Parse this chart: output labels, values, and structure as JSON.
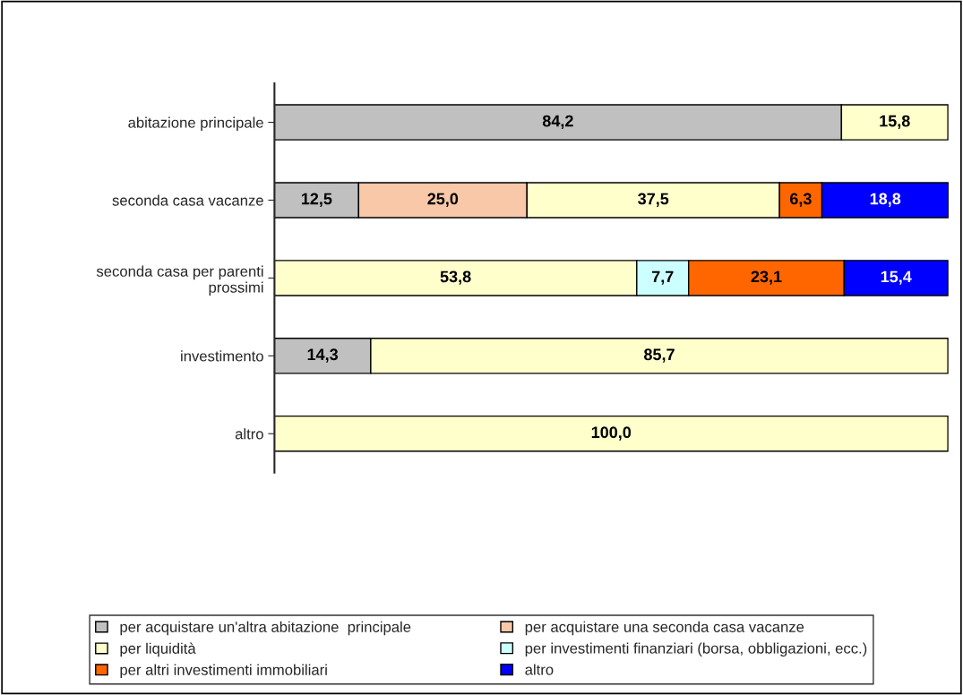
{
  "chart_data": {
    "type": "bar",
    "orientation": "horizontal",
    "stacked": true,
    "tick_labels": "y",
    "grid": false,
    "legend": "bottom",
    "categories": [
      "abitazione principale",
      "seconda casa vacanze",
      "seconda casa per parenti\nprossimi",
      "investimento",
      "altro"
    ],
    "series": [
      {
        "name": "per acquistare un'altra abitazione  principale",
        "color": "#c0c0c0",
        "values": [
          84.2,
          12.5,
          null,
          14.3,
          null
        ],
        "value_labels": [
          "84,2",
          "12,5",
          null,
          "14,3",
          null
        ]
      },
      {
        "name": "per acquistare una seconda casa vacanze",
        "color": "#f8c8a8",
        "values": [
          null,
          25.0,
          null,
          null,
          null
        ],
        "value_labels": [
          null,
          "25,0",
          null,
          null,
          null
        ]
      },
      {
        "name": "per liquidità",
        "color": "#ffffcc",
        "values": [
          15.8,
          37.5,
          53.8,
          85.7,
          100.0
        ],
        "value_labels": [
          "15,8",
          "37,5",
          "53,8",
          "85,7",
          "100,0"
        ]
      },
      {
        "name": "per investimenti finanziari (borsa, obbligazioni, ecc.)",
        "color": "#ccffff",
        "values": [
          null,
          null,
          7.7,
          null,
          null
        ],
        "value_labels": [
          null,
          null,
          "7,7",
          null,
          null
        ]
      },
      {
        "name": "per altri investimenti immobiliari",
        "color": "#ff6600",
        "values": [
          null,
          6.3,
          23.1,
          null,
          null
        ],
        "value_labels": [
          null,
          "6,3",
          "23,1",
          null,
          null
        ]
      },
      {
        "name": "altro",
        "color": "#0000ff",
        "values": [
          null,
          18.8,
          15.4,
          null,
          null
        ],
        "value_labels": [
          null,
          "18,8",
          "15,4",
          null,
          null
        ]
      }
    ]
  }
}
